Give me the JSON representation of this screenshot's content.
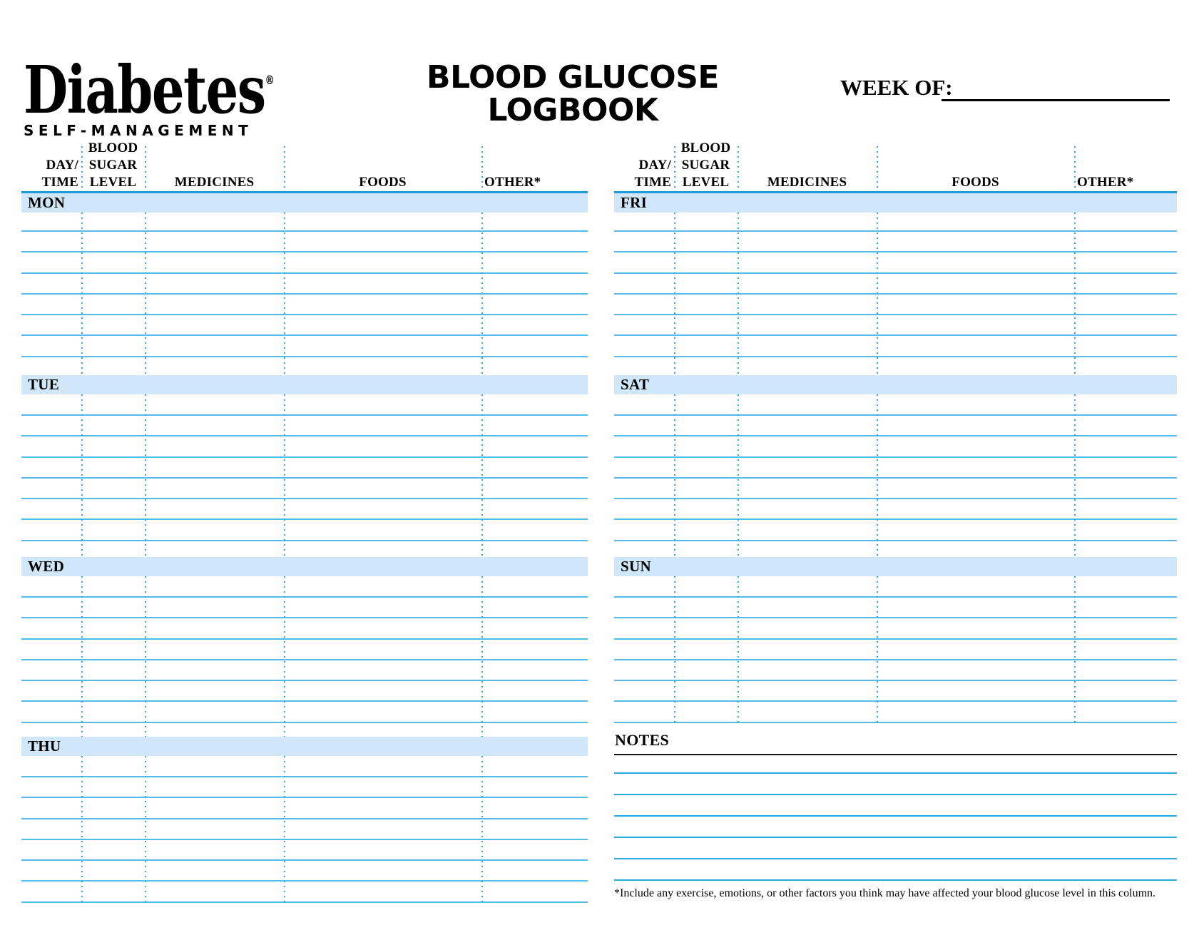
{
  "logo": {
    "brand": "Diabetes",
    "reg": "®",
    "tagline": "SELF-MANAGEMENT"
  },
  "header": {
    "title_line1": "BLOOD GLUCOSE",
    "title_line2": "LOGBOOK",
    "week_of_label": "WEEK OF:"
  },
  "table": {
    "column_headers": [
      [
        "DAY/",
        "TIME"
      ],
      [
        "BLOOD",
        "SUGAR",
        "LEVEL"
      ],
      [
        "MEDICINES"
      ],
      [
        "FOODS"
      ],
      [
        "OTHER*"
      ]
    ],
    "left_days": [
      "MON",
      "TUE",
      "WED",
      "THU"
    ],
    "right_days": [
      "FRI",
      "SAT",
      "SUN"
    ],
    "rows_per_day": 7
  },
  "notes": {
    "label": "NOTES",
    "line_count": 6
  },
  "footnote": "*Include any exercise, emotions, or other factors you think may have affected your blood glucose level in this column.",
  "colors": {
    "accent": "#29abe2",
    "accent_dark": "#189bd7",
    "bar_fill": "#cfe7f8",
    "ink": "#000000"
  }
}
